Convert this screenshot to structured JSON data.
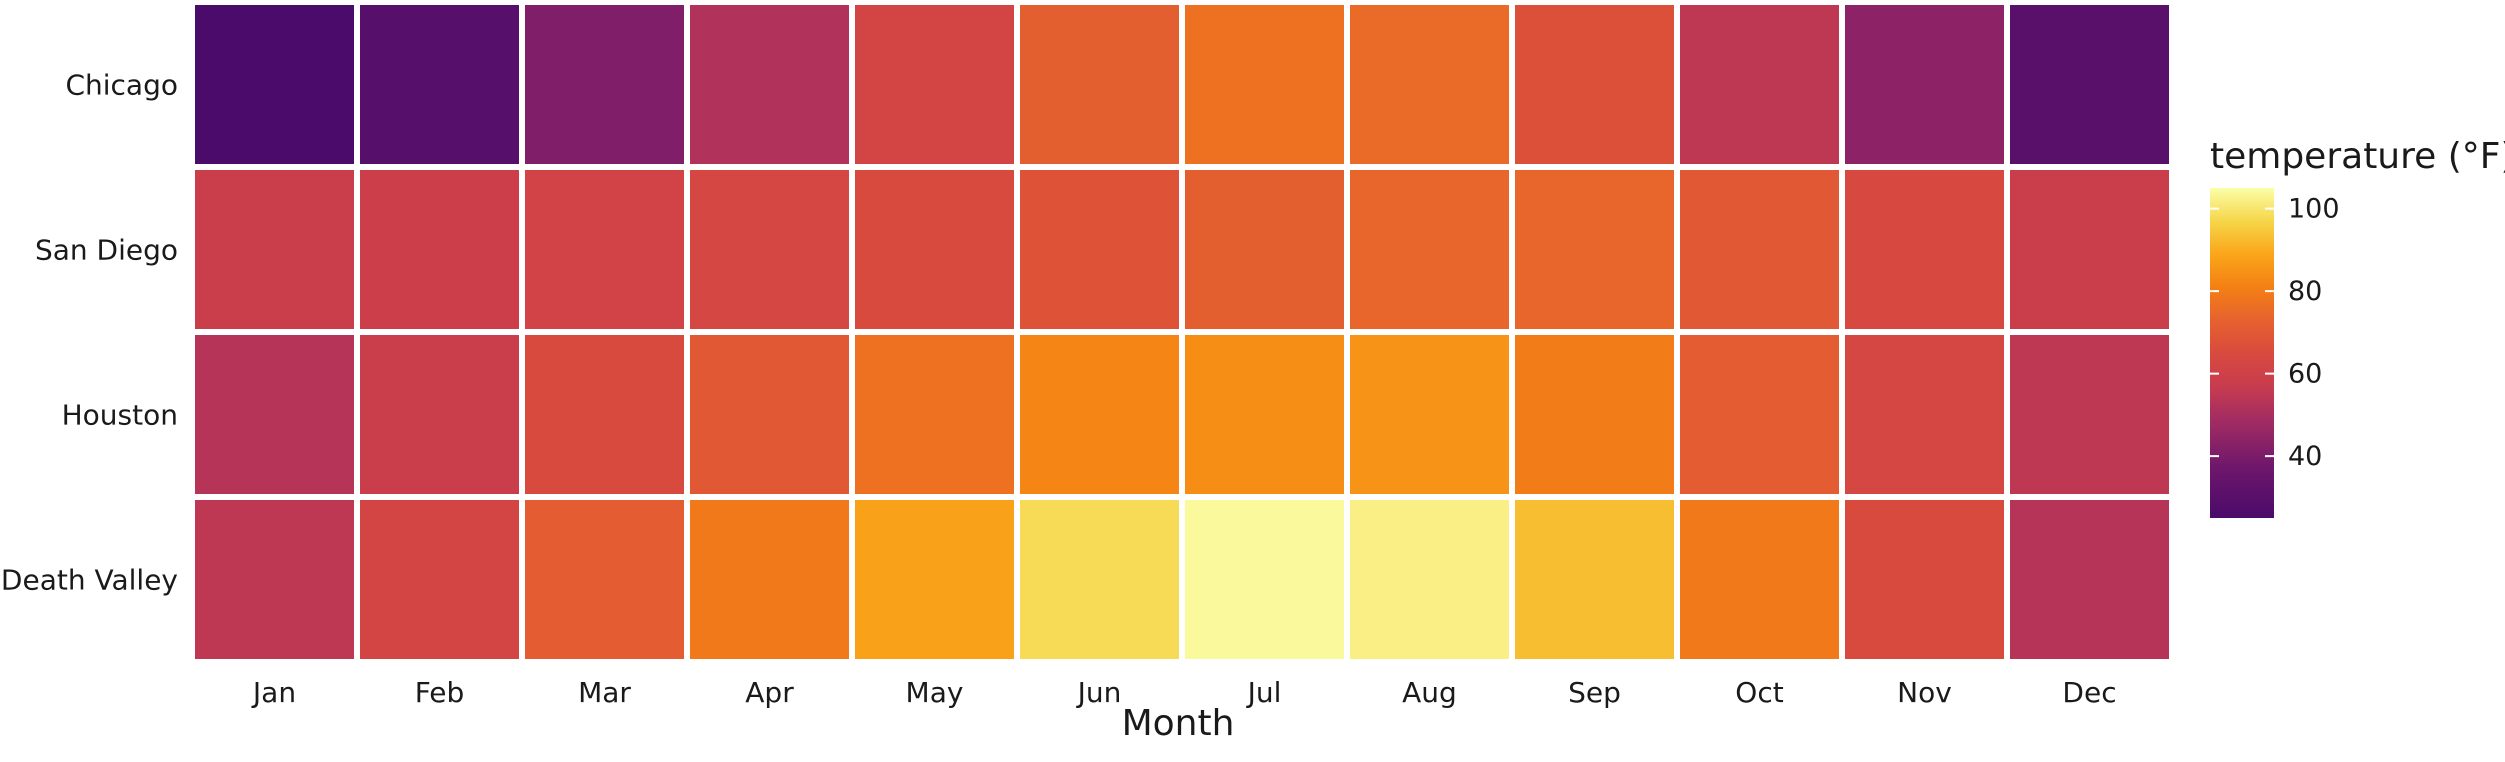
{
  "chart_data": {
    "type": "heatmap",
    "xlabel": "Month",
    "ylabel": "",
    "x_categories": [
      "Jan",
      "Feb",
      "Mar",
      "Apr",
      "May",
      "Jun",
      "Jul",
      "Aug",
      "Sep",
      "Oct",
      "Nov",
      "Dec"
    ],
    "y_categories": [
      "Chicago",
      "San Diego",
      "Houston",
      "Death Valley"
    ],
    "values": [
      [
        24,
        29,
        41,
        52,
        62,
        72,
        77,
        75,
        67,
        55,
        44,
        30
      ],
      [
        58,
        59,
        61,
        63,
        65,
        68,
        72,
        74,
        74,
        70,
        64,
        58
      ],
      [
        53,
        58,
        65,
        70,
        77,
        82,
        84,
        85,
        80,
        71,
        63,
        55
      ],
      [
        55,
        62,
        71,
        79,
        88,
        98,
        104,
        102,
        93,
        79,
        65,
        53
      ]
    ],
    "legend": {
      "title": "temperature (°F)",
      "ticks": [
        40,
        60,
        80,
        100
      ],
      "range": [
        25,
        105
      ],
      "position": "right",
      "colormap": "inferno"
    },
    "grid": false
  }
}
